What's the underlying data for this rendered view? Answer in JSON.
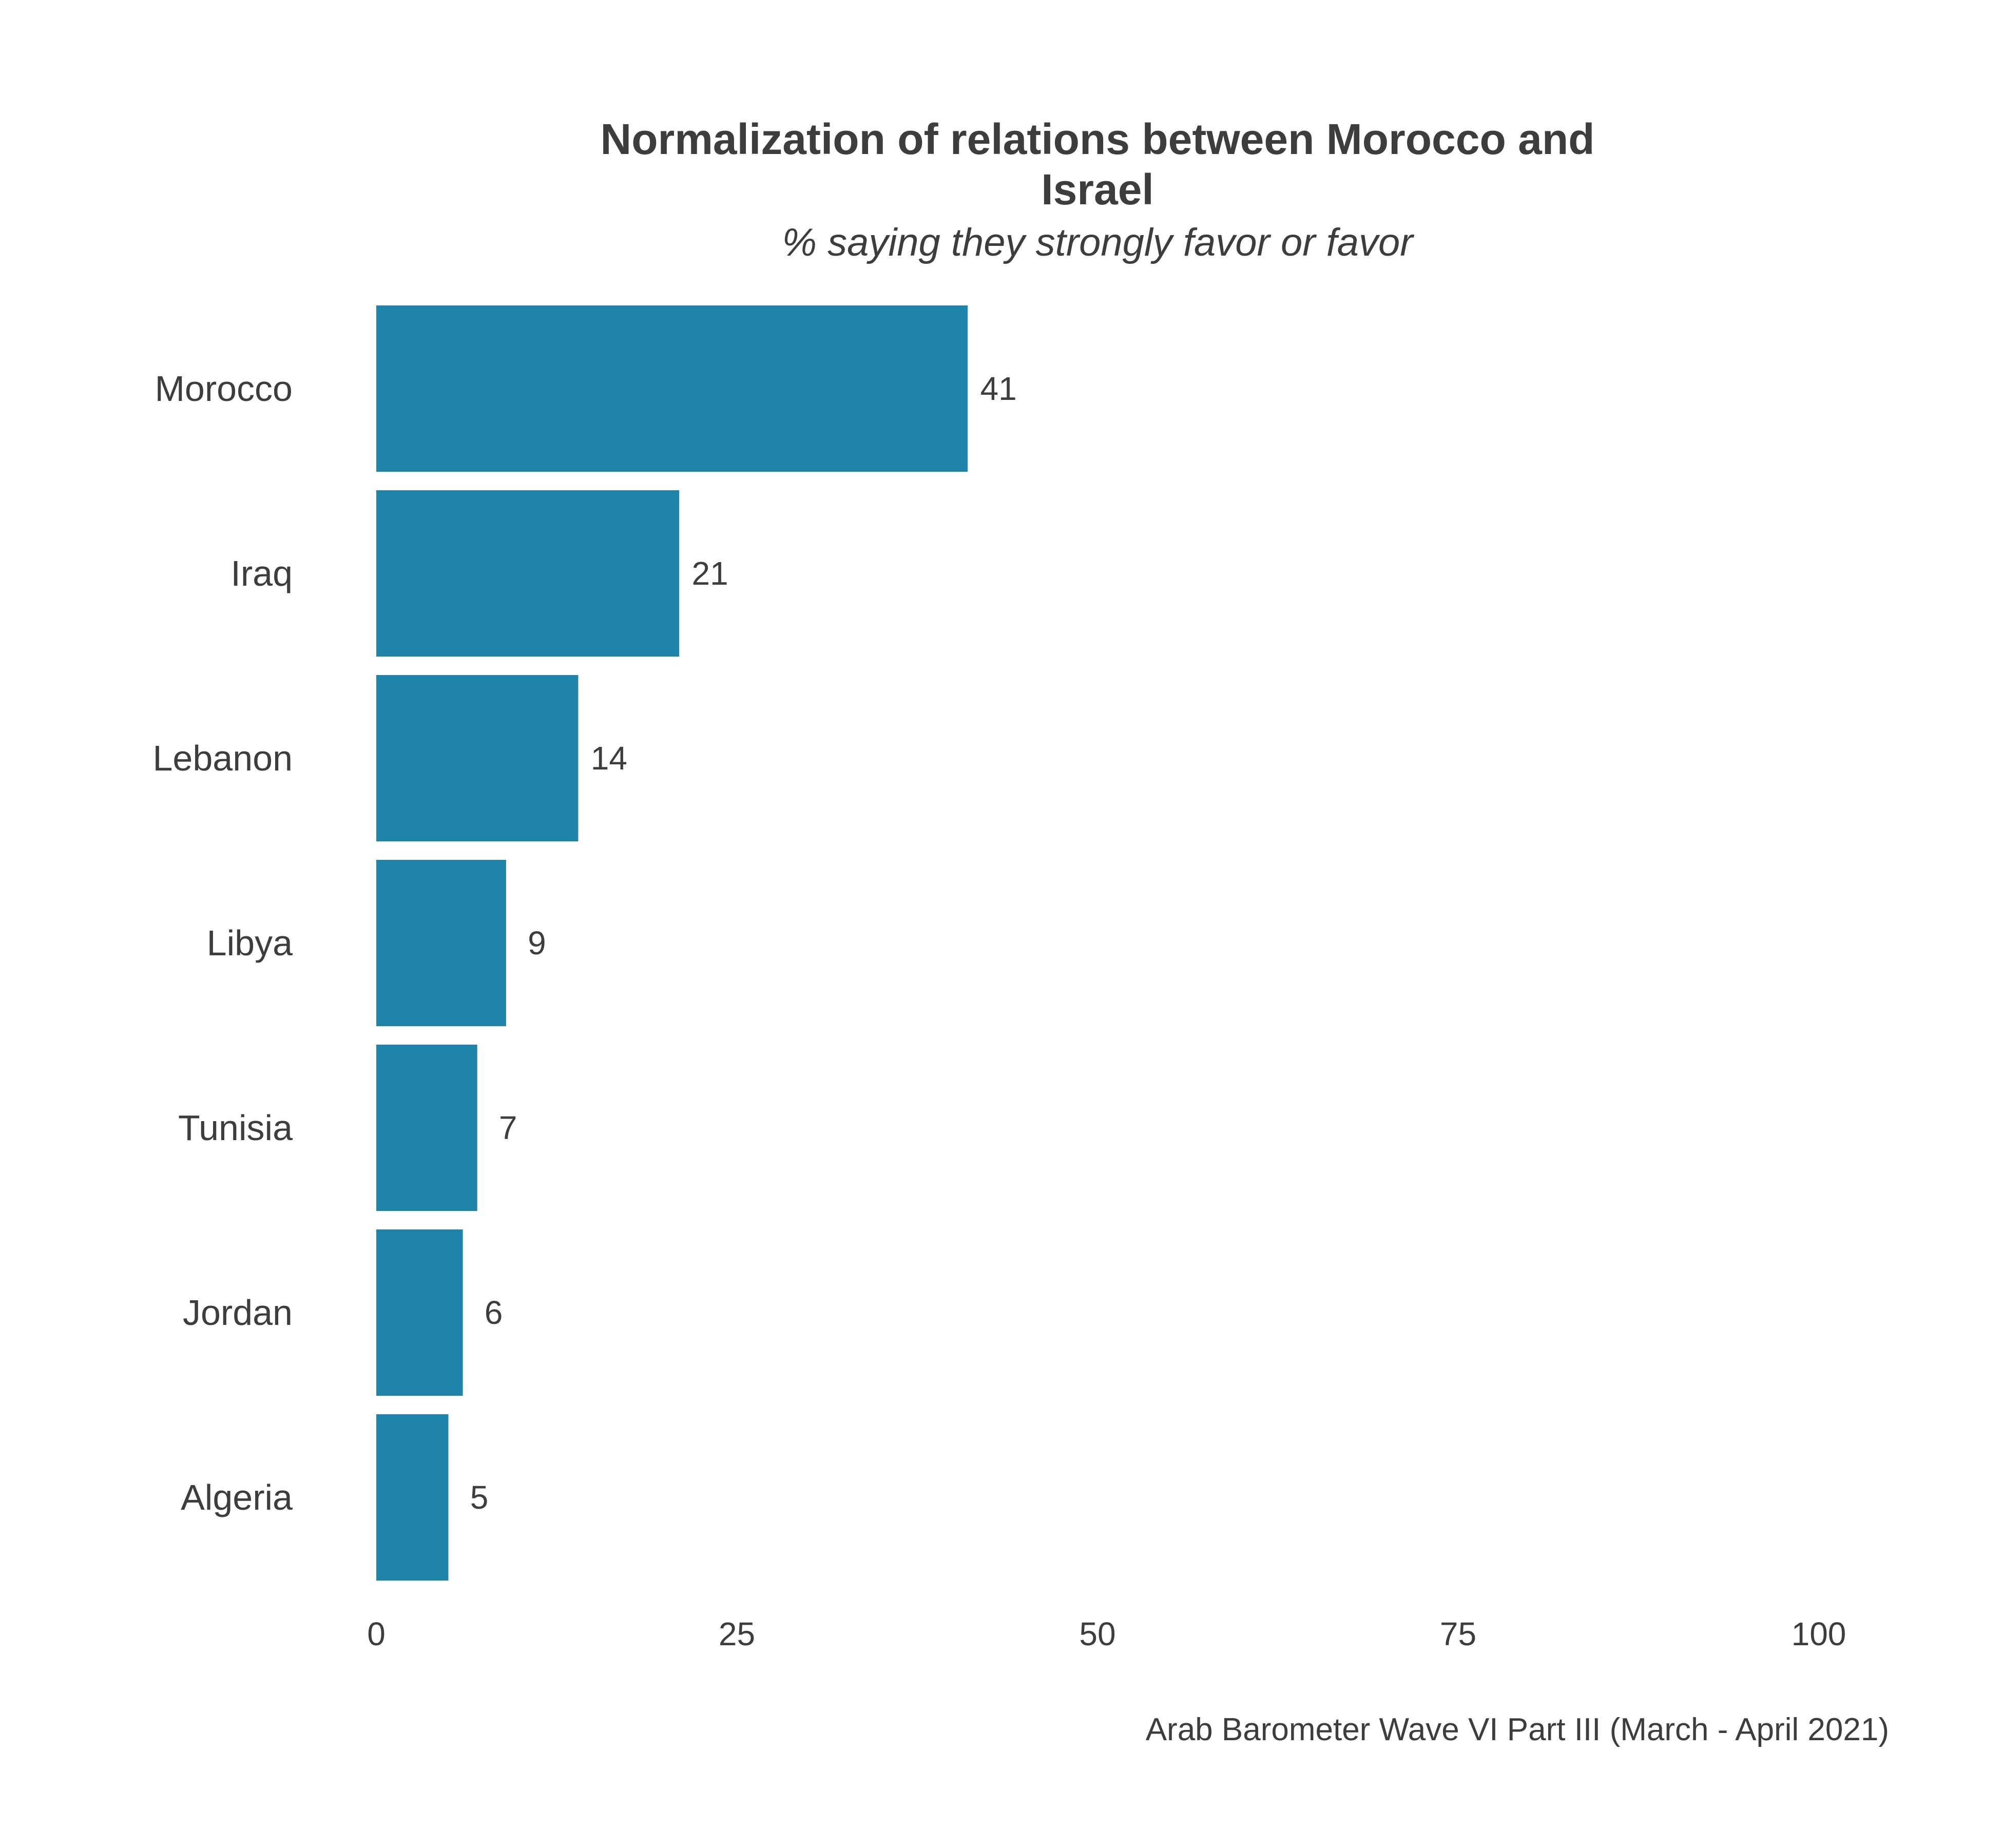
{
  "chart_data": {
    "type": "bar",
    "orientation": "horizontal",
    "title_lines": [
      "Normalization of relations between Morocco and",
      "Israel"
    ],
    "subtitle": "% saying they strongly favor or favor",
    "categories": [
      "Morocco",
      "Iraq",
      "Lebanon",
      "Libya",
      "Tunisia",
      "Jordan",
      "Algeria"
    ],
    "values": [
      41,
      21,
      14,
      9,
      7,
      6,
      5
    ],
    "value_labels": [
      "41",
      "21",
      "14",
      "9",
      "7",
      "6",
      "5"
    ],
    "xlim": [
      0,
      100
    ],
    "x_ticks": [
      0,
      25,
      50,
      75,
      100
    ],
    "x_tick_labels": [
      "0",
      "25",
      "50",
      "75",
      "100"
    ],
    "xlabel": "",
    "ylabel": "",
    "grid": false,
    "legend": "none",
    "bar_color": "#1f84ab",
    "caption": "Arab Barometer Wave VI Part III (March - April 2021)"
  }
}
